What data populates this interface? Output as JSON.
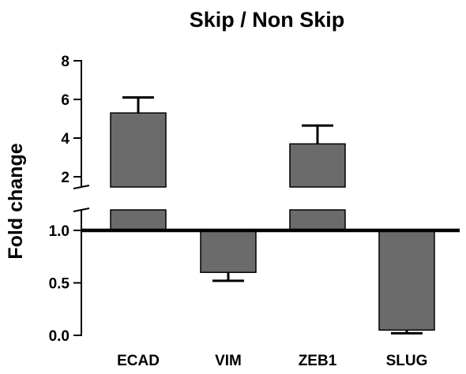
{
  "chart_data": {
    "type": "bar",
    "title": "Skip / Non Skip",
    "xlabel": "",
    "ylabel": "Fold change",
    "categories": [
      "ECAD",
      "VIM",
      "ZEB1",
      "SLUG"
    ],
    "values": [
      5.3,
      0.6,
      3.7,
      0.05
    ],
    "errors": [
      0.8,
      0.08,
      0.95,
      0.03
    ],
    "reference_line": 1.0,
    "bar_color": "#6b6b6b",
    "axis_break": {
      "lower_range": [
        0,
        1.2
      ],
      "upper_range": [
        1.5,
        8
      ]
    },
    "lower_ticks": [
      {
        "value": 0.0,
        "label": "0.0"
      },
      {
        "value": 0.5,
        "label": "0.5"
      },
      {
        "value": 1.0,
        "label": "1.0"
      }
    ],
    "upper_ticks": [
      {
        "value": 2,
        "label": "2"
      },
      {
        "value": 4,
        "label": "4"
      },
      {
        "value": 6,
        "label": "6"
      },
      {
        "value": 8,
        "label": "8"
      }
    ],
    "grid": false,
    "legend": "none"
  }
}
